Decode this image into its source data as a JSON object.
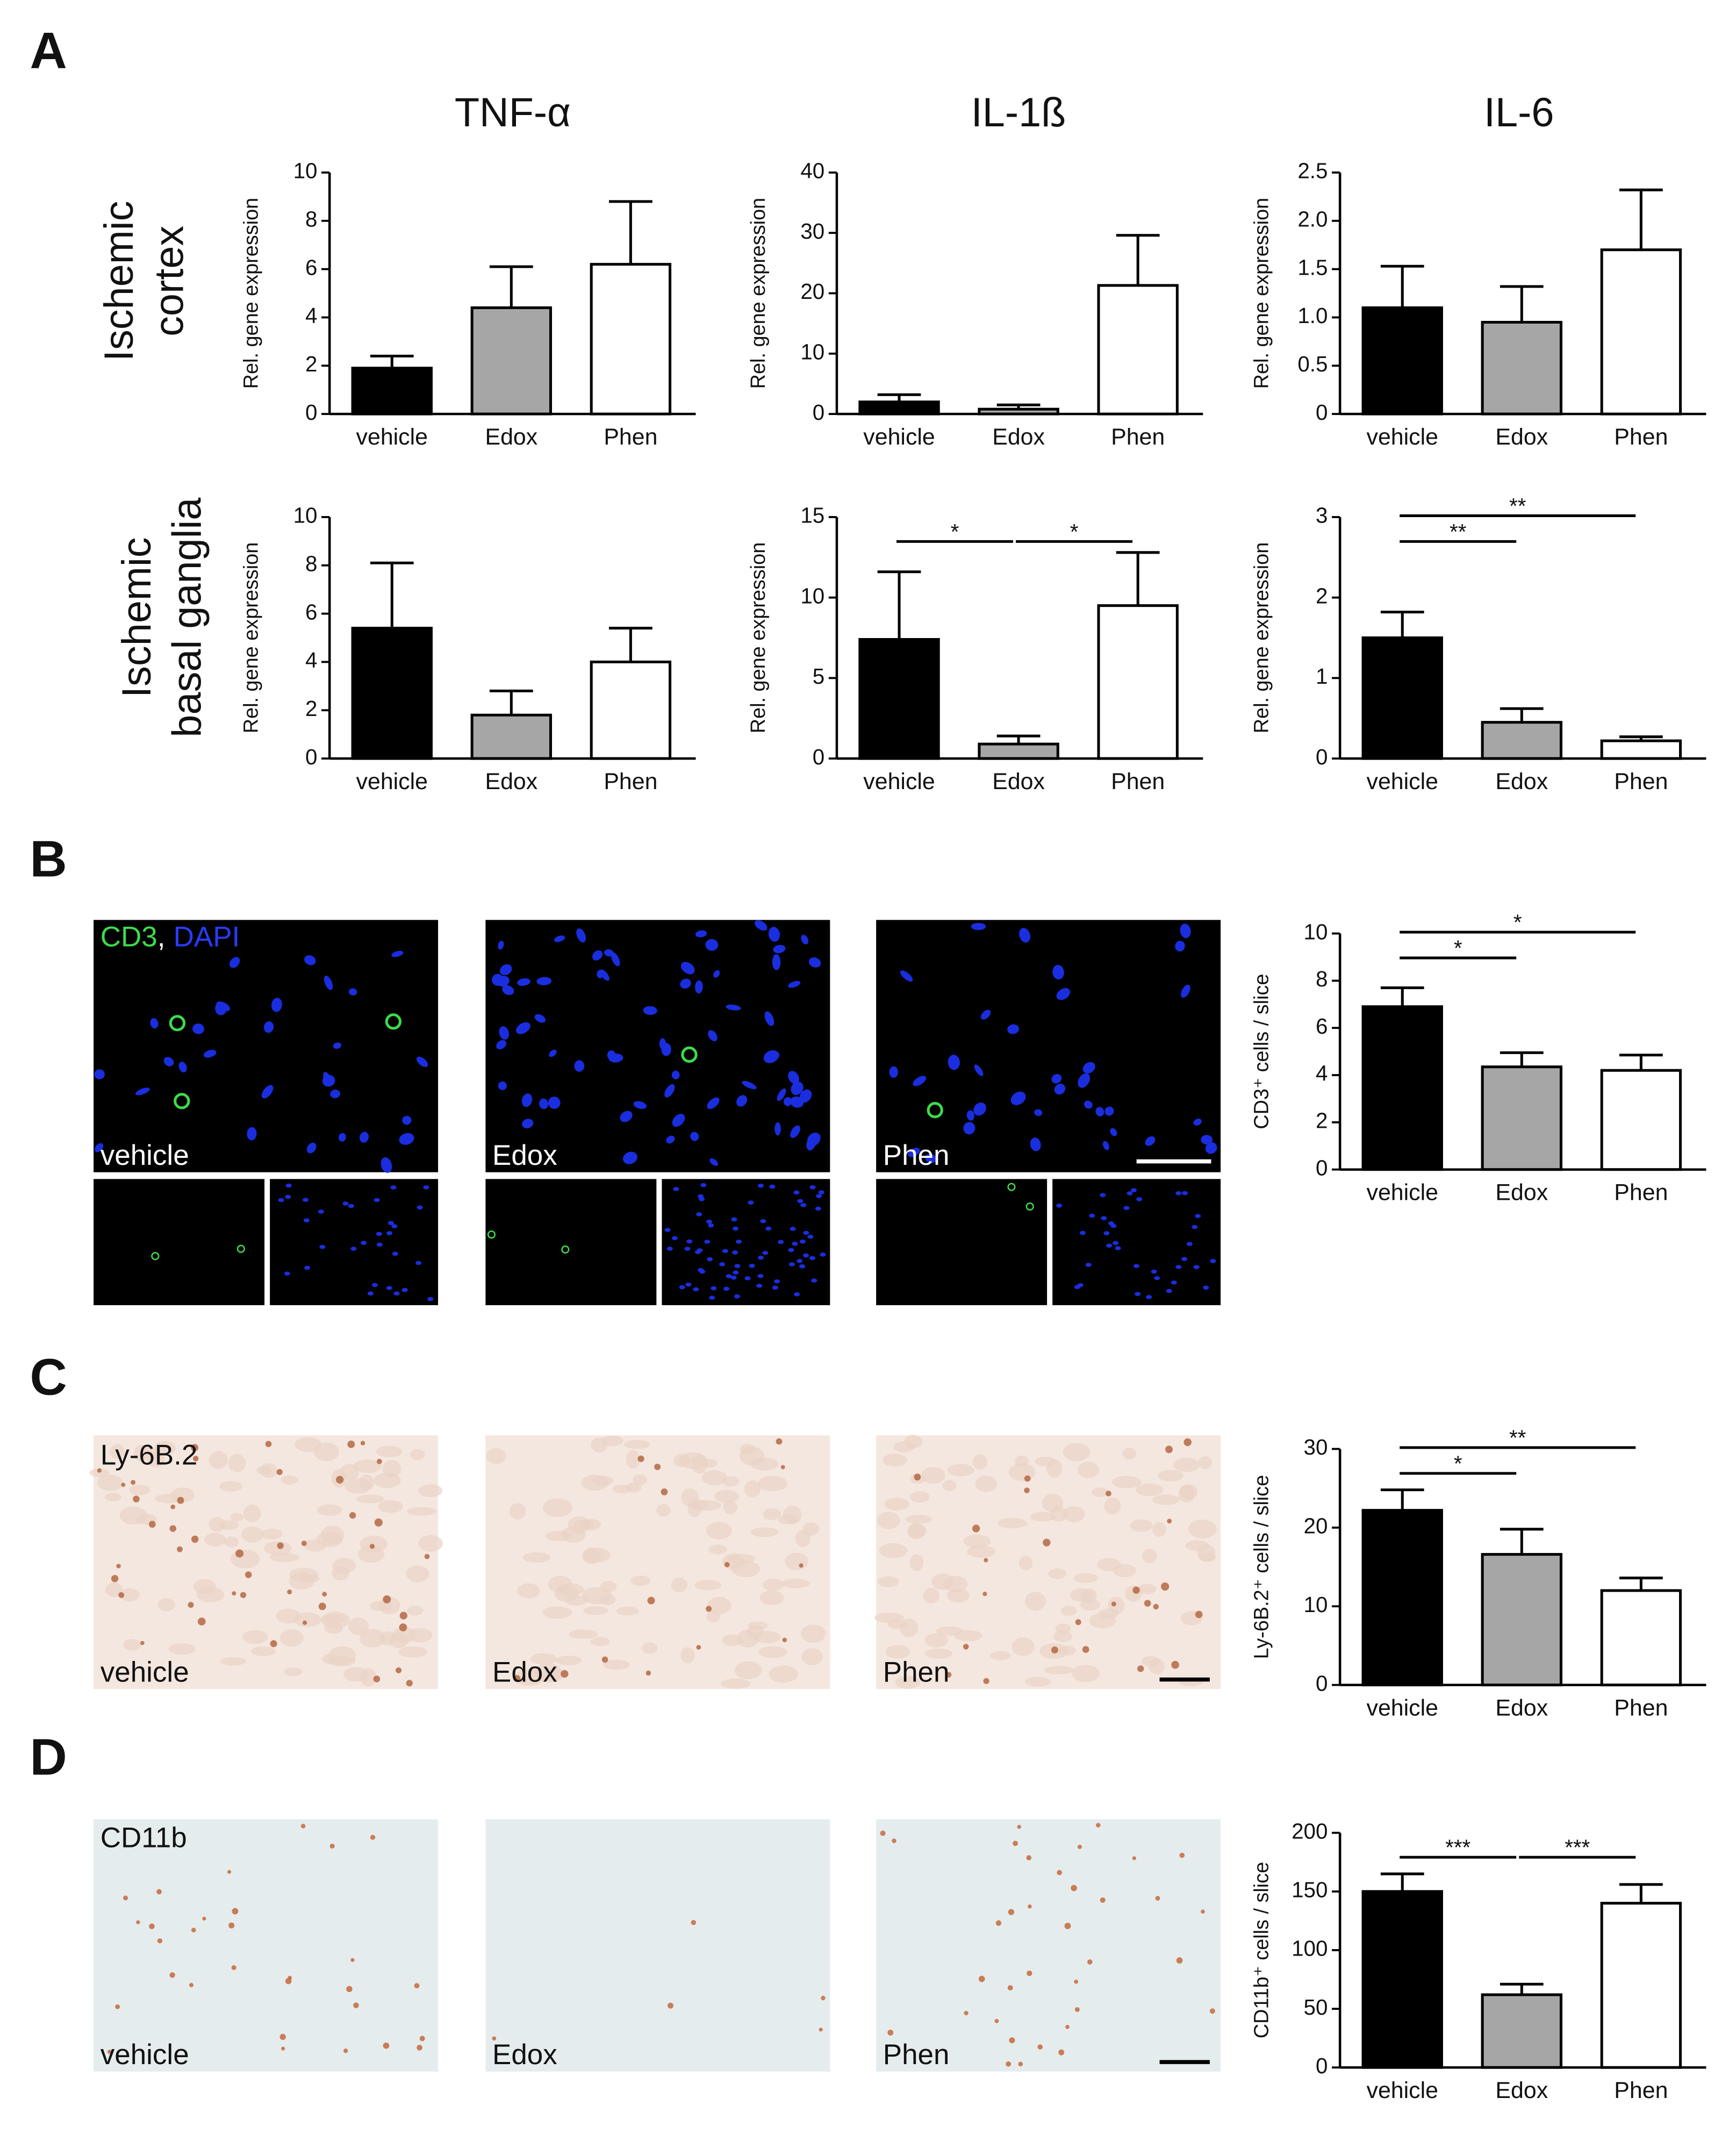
{
  "figure": {
    "panel_labels": [
      "A",
      "B",
      "C",
      "D"
    ],
    "column_titles": [
      "TNF-α",
      "IL-1ß",
      "IL-6"
    ],
    "row_labels": [
      [
        "Ischemic",
        "cortex"
      ],
      [
        "Ischemic",
        "basal ganglia"
      ]
    ],
    "images": {
      "conditions": [
        "vehicle",
        "Edox",
        "Phen"
      ],
      "B_stain": [
        "CD3",
        ",",
        "DAPI"
      ],
      "C_stain": "Ly-6B.2",
      "D_stain": "CD11b"
    }
  },
  "chart_data": [
    {
      "type": "bar",
      "ylabel": "Rel. gene expression",
      "categories": [
        "vehicle",
        "Edox",
        "Phen"
      ],
      "values": [
        1.9,
        4.4,
        6.2
      ],
      "errors": [
        0.5,
        1.7,
        2.6
      ],
      "colors": [
        "#000000",
        "#a6a6a6",
        "#ffffff"
      ],
      "ylim": [
        0,
        10
      ],
      "yticks": [
        0,
        2,
        4,
        6,
        8,
        10
      ]
    },
    {
      "type": "bar",
      "ylabel": "Rel. gene expression",
      "categories": [
        "vehicle",
        "Edox",
        "Phen"
      ],
      "values": [
        2,
        0.8,
        21.3
      ],
      "errors": [
        1.2,
        0.7,
        8.3
      ],
      "colors": [
        "#000000",
        "#a6a6a6",
        "#ffffff"
      ],
      "ylim": [
        0,
        40
      ],
      "yticks": [
        0,
        10,
        20,
        30,
        40
      ]
    },
    {
      "type": "bar",
      "ylabel": "Rel. gene expression",
      "categories": [
        "vehicle",
        "Edox",
        "Phen"
      ],
      "values": [
        1.1,
        0.95,
        1.7
      ],
      "errors": [
        0.43,
        0.37,
        0.62
      ],
      "colors": [
        "#000000",
        "#a6a6a6",
        "#ffffff"
      ],
      "ylim": [
        0,
        2.5
      ],
      "yticks": [
        0,
        0.5,
        {
          "value": 1,
          "label": "1.0"
        },
        1.5,
        {
          "value": 2,
          "label": "2.0"
        },
        2.5
      ]
    },
    {
      "type": "bar",
      "ylabel": "Rel. gene expression",
      "categories": [
        "vehicle",
        "Edox",
        "Phen"
      ],
      "values": [
        5.4,
        1.8,
        4.0
      ],
      "errors": [
        2.7,
        1.0,
        1.4
      ],
      "colors": [
        "#000000",
        "#a6a6a6",
        "#ffffff"
      ],
      "ylim": [
        0,
        10
      ],
      "yticks": [
        0,
        2,
        4,
        6,
        8,
        10
      ]
    },
    {
      "type": "bar",
      "ylabel": "Rel. gene expression",
      "categories": [
        "vehicle",
        "Edox",
        "Phen"
      ],
      "values": [
        7.4,
        0.9,
        9.5
      ],
      "errors": [
        4.2,
        0.5,
        3.3
      ],
      "colors": [
        "#000000",
        "#a6a6a6",
        "#ffffff"
      ],
      "ylim": [
        0,
        15
      ],
      "yticks": [
        0,
        5,
        10,
        15
      ],
      "significance": [
        {
          "from": "vehicle",
          "to": "Edox",
          "label": "*"
        },
        {
          "from": "Edox",
          "to": "Phen",
          "label": "*"
        }
      ]
    },
    {
      "type": "bar",
      "ylabel": "Rel. gene expression",
      "categories": [
        "vehicle",
        "Edox",
        "Phen"
      ],
      "values": [
        1.5,
        0.45,
        0.22
      ],
      "errors": [
        0.32,
        0.17,
        0.05
      ],
      "colors": [
        "#000000",
        "#a6a6a6",
        "#ffffff"
      ],
      "ylim": [
        0,
        3
      ],
      "yticks": [
        0,
        1,
        2,
        3
      ],
      "significance": [
        {
          "from": "vehicle",
          "to": "Edox",
          "label": "**"
        },
        {
          "from": "vehicle",
          "to": "Phen",
          "label": "**"
        }
      ]
    },
    {
      "type": "bar",
      "ylabel": "CD3⁺ cells / slice",
      "categories": [
        "vehicle",
        "Edox",
        "Phen"
      ],
      "values": [
        6.9,
        4.35,
        4.2
      ],
      "errors": [
        0.8,
        0.6,
        0.65
      ],
      "colors": [
        "#000000",
        "#a6a6a6",
        "#ffffff"
      ],
      "ylim": [
        0,
        10
      ],
      "yticks": [
        0,
        2,
        4,
        6,
        8,
        10
      ],
      "significance": [
        {
          "from": "vehicle",
          "to": "Edox",
          "label": "*"
        },
        {
          "from": "vehicle",
          "to": "Phen",
          "label": "*"
        }
      ]
    },
    {
      "type": "bar",
      "ylabel": "Ly-6B.2⁺ cells / slice",
      "categories": [
        "vehicle",
        "Edox",
        "Phen"
      ],
      "values": [
        22.2,
        16.6,
        12.0
      ],
      "errors": [
        2.6,
        3.2,
        1.6
      ],
      "colors": [
        "#000000",
        "#a6a6a6",
        "#ffffff"
      ],
      "ylim": [
        0,
        30
      ],
      "yticks": [
        0,
        10,
        20,
        30
      ],
      "significance": [
        {
          "from": "vehicle",
          "to": "Edox",
          "label": "*"
        },
        {
          "from": "vehicle",
          "to": "Phen",
          "label": "**"
        }
      ]
    },
    {
      "type": "bar",
      "ylabel": "CD11b⁺ cells / slice",
      "categories": [
        "vehicle",
        "Edox",
        "Phen"
      ],
      "values": [
        150,
        62,
        140
      ],
      "errors": [
        15,
        9,
        16
      ],
      "colors": [
        "#000000",
        "#a6a6a6",
        "#ffffff"
      ],
      "ylim": [
        0,
        200
      ],
      "yticks": [
        0,
        50,
        100,
        150,
        200
      ],
      "significance": [
        {
          "from": "vehicle",
          "to": "Edox",
          "label": "***"
        },
        {
          "from": "Edox",
          "to": "Phen",
          "label": "***"
        }
      ]
    }
  ]
}
